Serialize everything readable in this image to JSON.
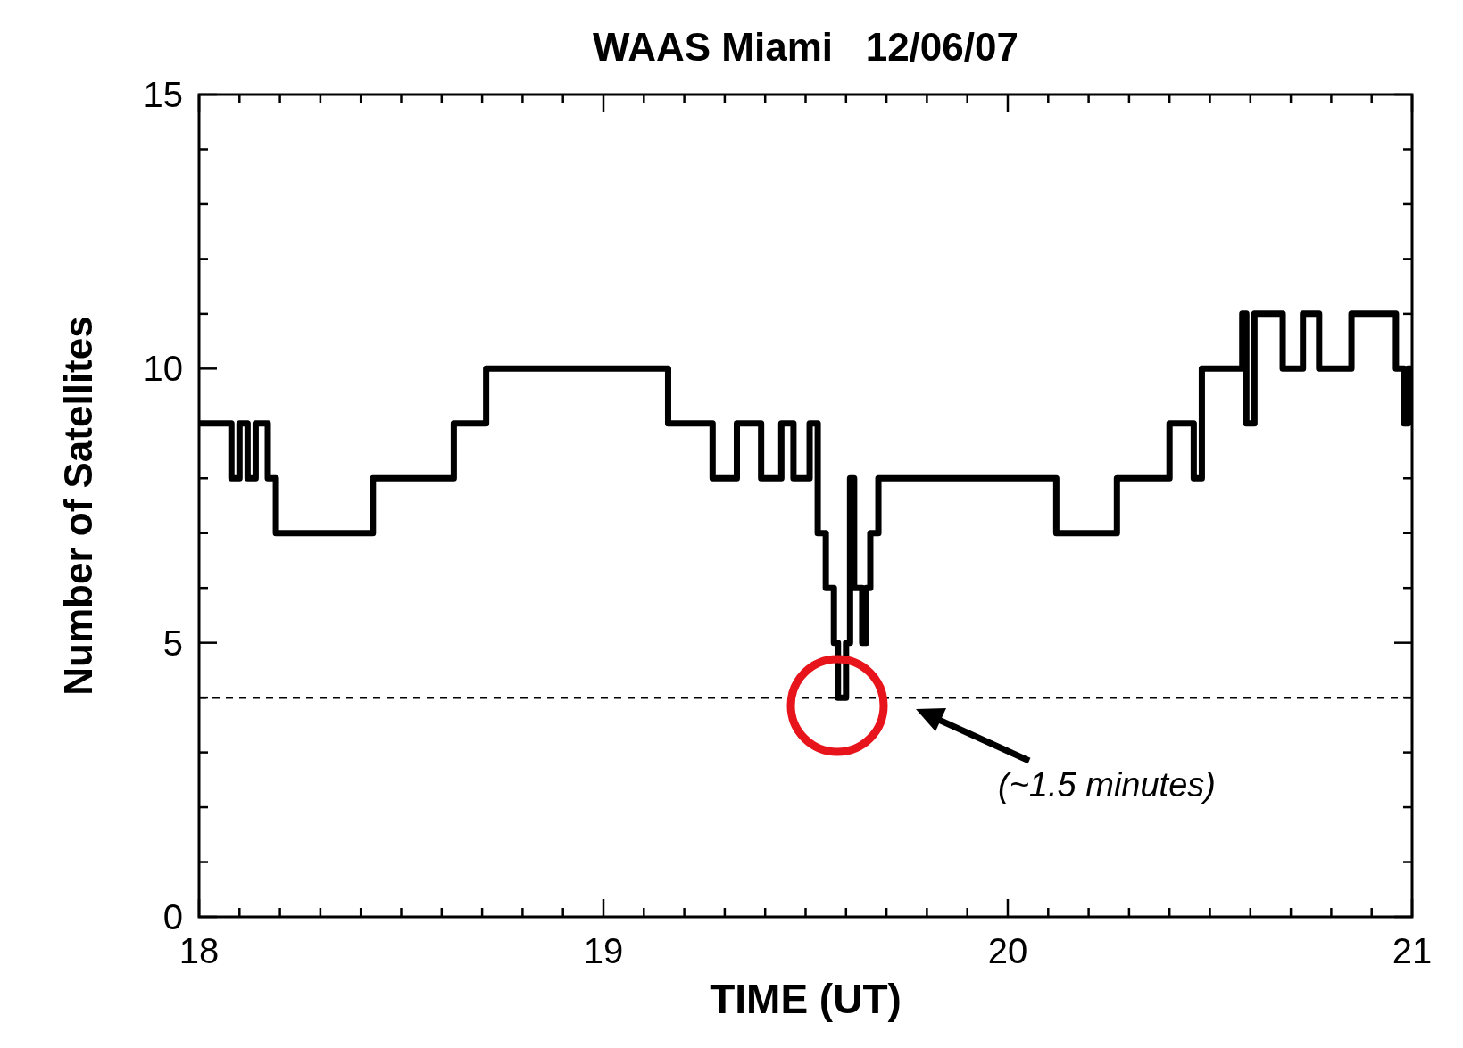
{
  "chart_data": {
    "type": "step",
    "title": "WAAS Miami   12/06/07",
    "xlabel": "TIME (UT)",
    "ylabel": "Number of Satellites",
    "x": [
      18.0,
      18.08,
      18.1,
      18.12,
      18.14,
      18.17,
      18.19,
      18.43,
      18.63,
      18.71,
      19.16,
      19.27,
      19.33,
      19.39,
      19.44,
      19.47,
      19.51,
      19.53,
      19.55,
      19.57,
      19.58,
      19.6,
      19.61,
      19.62,
      19.64,
      19.65,
      19.66,
      19.68,
      20.12,
      20.27,
      20.4,
      20.46,
      20.48,
      20.58,
      20.59,
      20.61,
      20.68,
      20.73,
      20.77,
      20.85,
      20.96,
      20.98,
      20.99,
      21.0
    ],
    "series": [
      {
        "color": "#000000",
        "values": [
          9,
          8,
          9,
          8,
          9,
          8,
          7,
          8,
          9,
          10,
          9,
          8,
          9,
          8,
          9,
          8,
          9,
          7,
          6,
          5,
          4,
          5,
          8,
          6,
          5,
          6,
          7,
          8,
          7,
          8,
          9,
          8,
          10,
          11,
          9,
          11,
          10,
          11,
          10,
          11,
          10,
          9,
          10,
          10
        ]
      }
    ],
    "xlim": [
      18,
      21
    ],
    "ylim": [
      0,
      15
    ],
    "xticks": [
      18,
      {
        "value": 18.1,
        "label": null
      },
      {
        "value": 18.2,
        "label": null
      },
      {
        "value": 18.3,
        "label": null
      },
      {
        "value": 18.4,
        "label": null
      },
      {
        "value": 18.5,
        "label": null
      },
      {
        "value": 18.6,
        "label": null
      },
      {
        "value": 18.7,
        "label": null
      },
      {
        "value": 18.8,
        "label": null
      },
      {
        "value": 18.9,
        "label": null
      },
      19,
      {
        "value": 19.1,
        "label": null
      },
      {
        "value": 19.2,
        "label": null
      },
      {
        "value": 19.3,
        "label": null
      },
      {
        "value": 19.4,
        "label": null
      },
      {
        "value": 19.5,
        "label": null
      },
      {
        "value": 19.6,
        "label": null
      },
      {
        "value": 19.7,
        "label": null
      },
      {
        "value": 19.8,
        "label": null
      },
      {
        "value": 19.9,
        "label": null
      },
      20,
      {
        "value": 20.1,
        "label": null
      },
      {
        "value": 20.2,
        "label": null
      },
      {
        "value": 20.3,
        "label": null
      },
      {
        "value": 20.4,
        "label": null
      },
      {
        "value": 20.5,
        "label": null
      },
      {
        "value": 20.6,
        "label": null
      },
      {
        "value": 20.7,
        "label": null
      },
      {
        "value": 20.8,
        "label": null
      },
      {
        "value": 20.9,
        "label": null
      },
      21
    ],
    "yticks": [
      0,
      {
        "value": 1,
        "label": null
      },
      {
        "value": 2,
        "label": null
      },
      {
        "value": 3,
        "label": null
      },
      {
        "value": 4,
        "label": null
      },
      5,
      {
        "value": 6,
        "label": null
      },
      {
        "value": 7,
        "label": null
      },
      {
        "value": 8,
        "label": null
      },
      {
        "value": 9,
        "label": null
      },
      10,
      {
        "value": 11,
        "label": null
      },
      {
        "value": 12,
        "label": null
      },
      {
        "value": 13,
        "label": null
      },
      {
        "value": 14,
        "label": null
      },
      15
    ],
    "ref_lines": [
      {
        "axis": "y",
        "value": 4,
        "line_style": "dashed",
        "color": "#000000"
      }
    ],
    "annotations": [
      "(~1.5 minutes)"
    ],
    "grid": false,
    "marker": "none",
    "line_style": "solid"
  }
}
